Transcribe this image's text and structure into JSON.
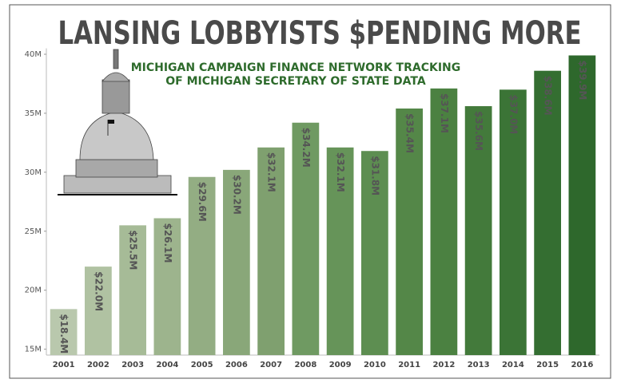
{
  "chart_data": {
    "type": "bar",
    "title": "LANSING LOBBYISTS $PENDING MORE",
    "subtitle": [
      "MICHIGAN CAMPAIGN FINANCE NETWORK TRACKING",
      "OF MICHIGAN SECRETARY OF STATE DATA"
    ],
    "categories": [
      "2001",
      "2002",
      "2003",
      "2004",
      "2005",
      "2006",
      "2007",
      "2008",
      "2009",
      "2010",
      "2011",
      "2012",
      "2013",
      "2014",
      "2015",
      "2016"
    ],
    "values": [
      18.4,
      22.0,
      25.5,
      26.1,
      29.6,
      30.2,
      32.1,
      34.2,
      32.1,
      31.8,
      35.4,
      37.1,
      35.6,
      37.0,
      38.6,
      39.9
    ],
    "value_labels": [
      "$18.4M",
      "$22.0M",
      "$25.5M",
      "$26.1M",
      "$29.6M",
      "$30.2M",
      "$32.1M",
      "$34.2M",
      "$32.1M",
      "$31.8M",
      "$35.4M",
      "$37.1M",
      "$35.6M",
      "$37.0M",
      "$38.6M",
      "$39.9M"
    ],
    "colors": [
      "#b9c8ad",
      "#b0c2a2",
      "#a6bb97",
      "#9db48d",
      "#93ad83",
      "#89a779",
      "#7fa06f",
      "#6f9a62",
      "#669459",
      "#5d8e51",
      "#548748",
      "#4b8141",
      "#437a3b",
      "#3b7436",
      "#346e31",
      "#2e682c"
    ],
    "ylim": [
      14.5,
      40.5
    ],
    "yticks": [
      {
        "value": 15,
        "label": "15M"
      },
      {
        "value": 20,
        "label": "20M"
      },
      {
        "value": 25,
        "label": "25M"
      },
      {
        "value": 30,
        "label": "30M"
      },
      {
        "value": 35,
        "label": "35M"
      },
      {
        "value": 40,
        "label": "40M"
      }
    ],
    "grid": false
  }
}
